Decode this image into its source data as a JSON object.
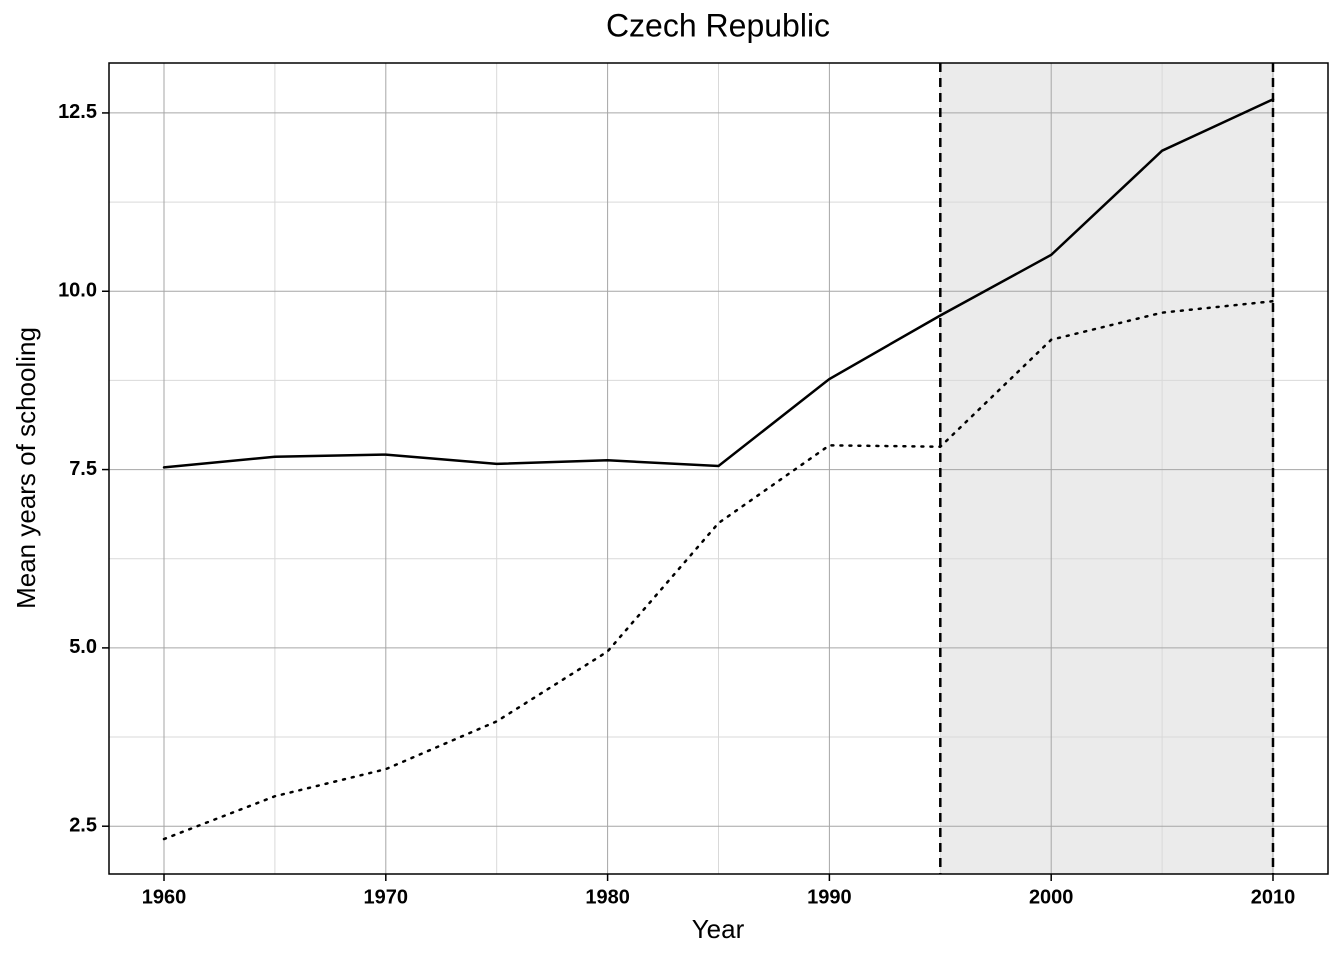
{
  "chart_data": {
    "type": "line",
    "title": "Czech Republic",
    "x_label": "Year",
    "y_label": "Mean years of schooling",
    "x": [
      1960,
      1965,
      1970,
      1975,
      1980,
      1985,
      1990,
      1995,
      2000,
      2005,
      2010
    ],
    "series": [
      {
        "color": "#000000",
        "dash": "solid",
        "values": [
          7.53,
          7.68,
          7.71,
          7.58,
          7.63,
          7.55,
          8.77,
          9.66,
          10.51,
          11.97,
          12.69
        ]
      },
      {
        "color": "#000000",
        "dash": "dotted",
        "values": [
          2.32,
          2.92,
          3.3,
          3.97,
          4.95,
          6.75,
          7.84,
          7.82,
          9.32,
          9.7,
          9.86
        ]
      }
    ],
    "xlim": [
      1957.52,
      2012.48
    ],
    "xticks": [
      1960,
      1970,
      1980,
      1990,
      2000,
      2010
    ],
    "ylim": [
      1.83,
      13.2
    ],
    "yticks": [
      2.5,
      {
        "value": 5,
        "label": "5.0"
      },
      7.5,
      {
        "value": 10,
        "label": "10.0"
      },
      12.5
    ],
    "grid": true,
    "minor_grid": true,
    "shaded_range": [
      1995,
      2010
    ],
    "shade_color": "#ebebeb"
  }
}
